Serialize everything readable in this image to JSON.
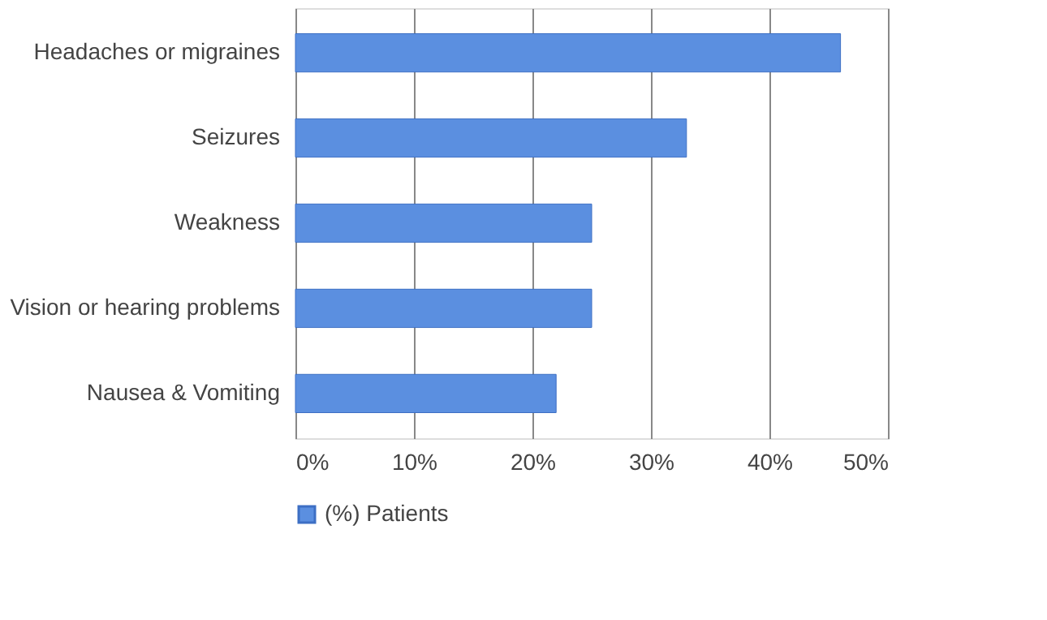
{
  "chart_data": {
    "type": "bar",
    "orientation": "horizontal",
    "categories": [
      "Headaches or migraines",
      "Seizures",
      "Weakness",
      "Vision or hearing problems",
      "Nausea & Vomiting"
    ],
    "series": [
      {
        "name": "(%) Patients",
        "color": "#5b8fe0",
        "values": [
          46,
          33,
          25,
          25,
          22
        ]
      }
    ],
    "xlim": [
      0,
      50
    ],
    "xticks": [
      {
        "value": 0,
        "label": "0%"
      },
      {
        "value": 10,
        "label": "10%"
      },
      {
        "value": 20,
        "label": "20%"
      },
      {
        "value": 30,
        "label": "30%"
      },
      {
        "value": 40,
        "label": "40%"
      },
      {
        "value": 50,
        "label": "50%"
      }
    ],
    "grid": "x",
    "legend": "bottom"
  }
}
